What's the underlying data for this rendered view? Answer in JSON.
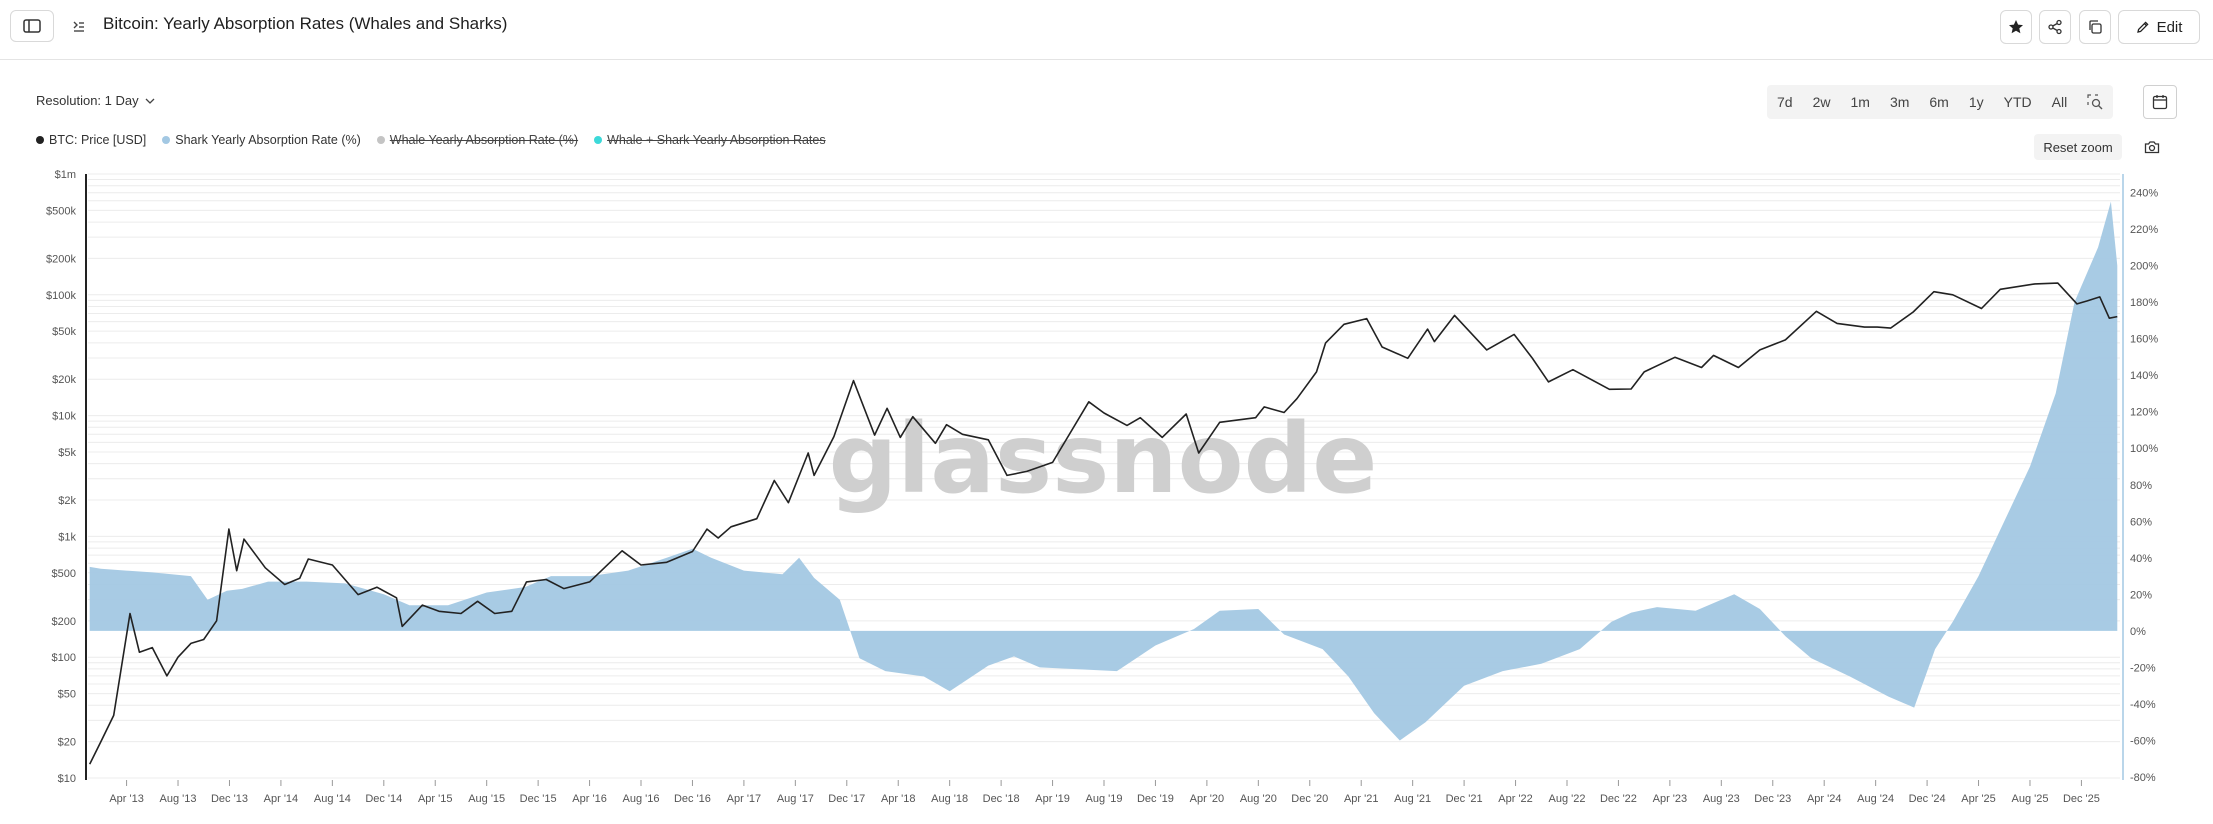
{
  "header": {
    "title": "Bitcoin: Yearly Absorption Rates (Whales and Sharks)",
    "edit_label": "Edit"
  },
  "controls": {
    "resolution_label": "Resolution: 1 Day",
    "ranges": [
      "7d",
      "2w",
      "1m",
      "3m",
      "6m",
      "1y",
      "YTD",
      "All"
    ],
    "reset_zoom_label": "Reset zoom"
  },
  "legend": [
    {
      "label": "BTC: Price [USD]",
      "color": "#222222",
      "active": true
    },
    {
      "label": "Shark Yearly Absorption Rate (%)",
      "color": "#a3c8e3",
      "active": true
    },
    {
      "label": "Whale Yearly Absorption Rate (%)",
      "color": "#c4c4c4",
      "active": false
    },
    {
      "label": "Whale + Shark Yearly Absorption Rates",
      "color": "#3cd9d9",
      "active": false
    }
  ],
  "watermark": "glassnode",
  "chart_data": {
    "type": "area",
    "x_tick_labels": [
      "Apr '13",
      "Aug '13",
      "Dec '13",
      "Apr '14",
      "Aug '14",
      "Dec '14",
      "Apr '15",
      "Aug '15",
      "Dec '15",
      "Apr '16",
      "Aug '16",
      "Dec '16",
      "Apr '17",
      "Aug '17",
      "Dec '17",
      "Apr '18",
      "Aug '18",
      "Dec '18",
      "Apr '19",
      "Aug '19",
      "Dec '19",
      "Apr '20",
      "Aug '20",
      "Dec '20",
      "Apr '21",
      "Aug '21",
      "Dec '21",
      "Apr '22",
      "Aug '22",
      "Dec '22",
      "Apr '23",
      "Aug '23",
      "Dec '23",
      "Apr '24",
      "Aug '24",
      "Dec '24",
      "Apr '25",
      "Aug '25",
      "Dec '25"
    ],
    "x_range": [
      "2013-01",
      "2026-03"
    ],
    "y_left": {
      "scale": "log",
      "range": [
        10,
        1000000
      ],
      "tick_labels": [
        "$10",
        "$20",
        "$50",
        "$100",
        "$200",
        "$500",
        "$1k",
        "$2k",
        "$5k",
        "$10k",
        "$20k",
        "$50k",
        "$100k",
        "$200k",
        "$500k",
        "$1m"
      ],
      "tick_values": [
        10,
        20,
        50,
        100,
        200,
        500,
        1000,
        2000,
        5000,
        10000,
        20000,
        50000,
        100000,
        200000,
        500000,
        1000000
      ]
    },
    "y_right": {
      "scale": "linear",
      "range": [
        -80,
        250
      ],
      "tick_labels": [
        "-80%",
        "-60%",
        "-40%",
        "-20%",
        "0%",
        "20%",
        "40%",
        "60%",
        "80%",
        "100%",
        "120%",
        "140%",
        "160%",
        "180%",
        "200%",
        "220%",
        "240%"
      ],
      "tick_values": [
        -80,
        -60,
        -40,
        -20,
        0,
        20,
        40,
        60,
        80,
        100,
        120,
        140,
        160,
        180,
        200,
        220,
        240
      ]
    },
    "series": [
      {
        "name": "BTC: Price [USD]",
        "axis": "left",
        "color": "#222222",
        "points": [
          [
            "2013-01-05",
            13
          ],
          [
            "2013-02-01",
            20
          ],
          [
            "2013-03-01",
            33
          ],
          [
            "2013-04-09",
            230
          ],
          [
            "2013-05-01",
            110
          ],
          [
            "2013-06-01",
            120
          ],
          [
            "2013-07-05",
            70
          ],
          [
            "2013-08-01",
            100
          ],
          [
            "2013-09-01",
            130
          ],
          [
            "2013-10-01",
            140
          ],
          [
            "2013-11-01",
            200
          ],
          [
            "2013-11-30",
            1150
          ],
          [
            "2013-12-18",
            520
          ],
          [
            "2014-01-05",
            950
          ],
          [
            "2014-02-25",
            550
          ],
          [
            "2014-04-10",
            400
          ],
          [
            "2014-05-15",
            450
          ],
          [
            "2014-06-05",
            650
          ],
          [
            "2014-08-01",
            580
          ],
          [
            "2014-10-01",
            330
          ],
          [
            "2014-11-15",
            380
          ],
          [
            "2014-12-31",
            310
          ],
          [
            "2015-01-14",
            180
          ],
          [
            "2015-03-01",
            270
          ],
          [
            "2015-04-10",
            240
          ],
          [
            "2015-06-01",
            230
          ],
          [
            "2015-07-10",
            290
          ],
          [
            "2015-08-20",
            230
          ],
          [
            "2015-09-30",
            240
          ],
          [
            "2015-11-04",
            420
          ],
          [
            "2015-12-20",
            440
          ],
          [
            "2016-02-01",
            370
          ],
          [
            "2016-04-01",
            420
          ],
          [
            "2016-06-17",
            760
          ],
          [
            "2016-08-01",
            580
          ],
          [
            "2016-10-01",
            610
          ],
          [
            "2016-12-01",
            750
          ],
          [
            "2017-01-05",
            1150
          ],
          [
            "2017-02-01",
            970
          ],
          [
            "2017-03-01",
            1200
          ],
          [
            "2017-05-01",
            1400
          ],
          [
            "2017-06-12",
            2900
          ],
          [
            "2017-07-15",
            1900
          ],
          [
            "2017-09-01",
            4900
          ],
          [
            "2017-09-15",
            3200
          ],
          [
            "2017-11-01",
            6700
          ],
          [
            "2017-12-17",
            19500
          ],
          [
            "2018-02-06",
            6900
          ],
          [
            "2018-03-05",
            11500
          ],
          [
            "2018-04-06",
            6600
          ],
          [
            "2018-05-05",
            9800
          ],
          [
            "2018-06-28",
            5900
          ],
          [
            "2018-07-24",
            8400
          ],
          [
            "2018-09-01",
            7000
          ],
          [
            "2018-11-01",
            6300
          ],
          [
            "2018-12-15",
            3200
          ],
          [
            "2019-02-01",
            3450
          ],
          [
            "2019-04-01",
            4100
          ],
          [
            "2019-06-26",
            13000
          ],
          [
            "2019-08-01",
            10500
          ],
          [
            "2019-09-25",
            8300
          ],
          [
            "2019-10-26",
            9600
          ],
          [
            "2019-12-17",
            6600
          ],
          [
            "2020-02-13",
            10300
          ],
          [
            "2020-03-12",
            4900
          ],
          [
            "2020-05-01",
            8800
          ],
          [
            "2020-07-25",
            9600
          ],
          [
            "2020-08-15",
            11800
          ],
          [
            "2020-10-01",
            10600
          ],
          [
            "2020-11-01",
            13800
          ],
          [
            "2020-12-17",
            23000
          ],
          [
            "2021-01-08",
            40000
          ],
          [
            "2021-02-21",
            57000
          ],
          [
            "2021-04-14",
            63500
          ],
          [
            "2021-05-20",
            37000
          ],
          [
            "2021-07-20",
            29800
          ],
          [
            "2021-09-06",
            52000
          ],
          [
            "2021-09-22",
            41000
          ],
          [
            "2021-11-09",
            67500
          ],
          [
            "2022-01-24",
            35000
          ],
          [
            "2022-03-28",
            47000
          ],
          [
            "2022-05-10",
            30000
          ],
          [
            "2022-06-18",
            19000
          ],
          [
            "2022-08-15",
            24000
          ],
          [
            "2022-11-10",
            16500
          ],
          [
            "2022-12-31",
            16600
          ],
          [
            "2023-02-01",
            23000
          ],
          [
            "2023-04-13",
            30400
          ],
          [
            "2023-06-15",
            25000
          ],
          [
            "2023-07-13",
            31500
          ],
          [
            "2023-09-11",
            25000
          ],
          [
            "2023-11-01",
            35000
          ],
          [
            "2023-12-31",
            42300
          ],
          [
            "2024-03-13",
            73000
          ],
          [
            "2024-05-01",
            58000
          ],
          [
            "2024-07-05",
            54000
          ],
          [
            "2024-08-05",
            54000
          ],
          [
            "2024-09-06",
            53000
          ],
          [
            "2024-10-29",
            72000
          ],
          [
            "2024-12-17",
            106000
          ],
          [
            "2025-02-01",
            100000
          ],
          [
            "2025-04-08",
            77000
          ],
          [
            "2025-05-22",
            111000
          ],
          [
            "2025-08-13",
            123000
          ],
          [
            "2025-10-06",
            125000
          ],
          [
            "2025-11-21",
            84000
          ],
          [
            "2025-12-15",
            89000
          ],
          [
            "2026-01-14",
            96000
          ],
          [
            "2026-02-06",
            64000
          ],
          [
            "2026-02-25",
            66000
          ]
        ]
      },
      {
        "name": "Shark Yearly Absorption Rate (%)",
        "axis": "right",
        "color": "#a3c8e3",
        "points": [
          [
            "2013-01-05",
            35
          ],
          [
            "2013-02-01",
            34
          ],
          [
            "2013-06-01",
            32
          ],
          [
            "2013-09-01",
            30
          ],
          [
            "2013-10-10",
            17
          ],
          [
            "2013-11-25",
            22
          ],
          [
            "2013-12-31",
            23
          ],
          [
            "2014-03-01",
            27
          ],
          [
            "2014-06-01",
            27
          ],
          [
            "2014-09-01",
            26
          ],
          [
            "2014-12-01",
            20
          ],
          [
            "2015-02-01",
            14
          ],
          [
            "2015-05-01",
            14
          ],
          [
            "2015-08-01",
            21
          ],
          [
            "2015-11-01",
            24
          ],
          [
            "2016-01-01",
            30
          ],
          [
            "2016-04-01",
            30
          ],
          [
            "2016-07-01",
            33
          ],
          [
            "2016-10-01",
            40
          ],
          [
            "2016-12-01",
            45
          ],
          [
            "2017-01-15",
            40
          ],
          [
            "2017-04-01",
            33
          ],
          [
            "2017-07-01",
            31
          ],
          [
            "2017-08-10",
            40
          ],
          [
            "2017-09-15",
            29
          ],
          [
            "2017-11-15",
            17
          ],
          [
            "2017-12-31",
            -15
          ],
          [
            "2018-03-01",
            -22
          ],
          [
            "2018-06-01",
            -25
          ],
          [
            "2018-08-01",
            -33
          ],
          [
            "2018-11-01",
            -19
          ],
          [
            "2019-01-01",
            -14
          ],
          [
            "2019-03-01",
            -20
          ],
          [
            "2019-06-01",
            -21
          ],
          [
            "2019-09-01",
            -22
          ],
          [
            "2019-12-01",
            -8
          ],
          [
            "2020-03-01",
            1
          ],
          [
            "2020-05-01",
            11
          ],
          [
            "2020-08-01",
            12
          ],
          [
            "2020-10-01",
            -2
          ],
          [
            "2021-01-01",
            -10
          ],
          [
            "2021-03-01",
            -25
          ],
          [
            "2021-05-01",
            -45
          ],
          [
            "2021-07-01",
            -60
          ],
          [
            "2021-09-01",
            -50
          ],
          [
            "2021-12-01",
            -30
          ],
          [
            "2022-03-01",
            -22
          ],
          [
            "2022-06-01",
            -18
          ],
          [
            "2022-09-01",
            -10
          ],
          [
            "2022-11-15",
            5
          ],
          [
            "2023-01-01",
            10
          ],
          [
            "2023-03-01",
            13
          ],
          [
            "2023-06-01",
            11
          ],
          [
            "2023-09-01",
            20
          ],
          [
            "2023-11-01",
            12
          ],
          [
            "2024-01-01",
            -3
          ],
          [
            "2024-03-01",
            -15
          ],
          [
            "2024-06-01",
            -25
          ],
          [
            "2024-09-01",
            -36
          ],
          [
            "2024-11-01",
            -42
          ],
          [
            "2024-12-20",
            -10
          ],
          [
            "2025-02-01",
            5
          ],
          [
            "2025-04-01",
            30
          ],
          [
            "2025-06-01",
            60
          ],
          [
            "2025-08-01",
            90
          ],
          [
            "2025-10-01",
            130
          ],
          [
            "2025-11-15",
            180
          ],
          [
            "2026-01-10",
            210
          ],
          [
            "2026-02-10",
            235
          ],
          [
            "2026-02-25",
            200
          ]
        ]
      }
    ]
  }
}
